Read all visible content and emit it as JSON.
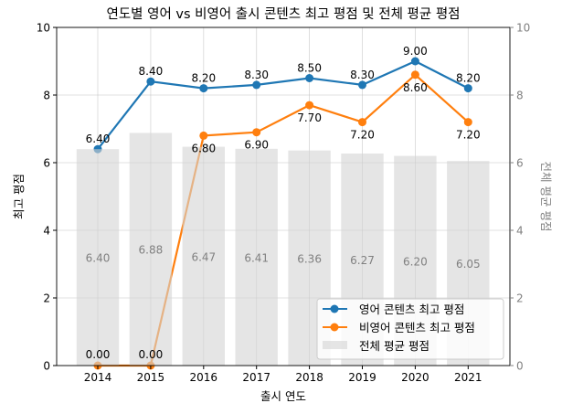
{
  "chart_data": {
    "type": "line+bar",
    "title": "연도별 영어 vs 비영어 출시 콘텐츠 최고 평점 및 전체 평균 평점",
    "xlabel": "출시 연도",
    "ylabel": "최고 평점",
    "ylabel_right": "전체 평균 평점",
    "categories": [
      "2014",
      "2015",
      "2016",
      "2017",
      "2018",
      "2019",
      "2020",
      "2021"
    ],
    "ylim": [
      0,
      10
    ],
    "ylim_right": [
      0,
      10
    ],
    "yticks": [
      "0",
      "2",
      "4",
      "6",
      "8",
      "10"
    ],
    "grid": true,
    "legend_position": "lower-right",
    "series": [
      {
        "name": "영어 콘텐츠 최고 평점",
        "type": "line",
        "color": "#1f77b4",
        "values": [
          6.4,
          8.4,
          8.2,
          8.3,
          8.5,
          8.3,
          9.0,
          8.2
        ],
        "labels": [
          "6.40",
          "8.40",
          "8.20",
          "8.30",
          "8.50",
          "8.30",
          "9.00",
          "8.20"
        ]
      },
      {
        "name": "비영어 콘텐츠 최고 평점",
        "type": "line",
        "color": "#ff7f0e",
        "values": [
          0.0,
          0.0,
          6.8,
          6.9,
          7.7,
          7.2,
          8.6,
          7.2
        ],
        "labels": [
          "0.00",
          "0.00",
          "6.80",
          "6.90",
          "7.70",
          "7.20",
          "8.60",
          "7.20"
        ]
      },
      {
        "name": "전체 평균 평점",
        "type": "bar",
        "axis": "right",
        "color": "#d3d3d3",
        "values": [
          6.4,
          6.88,
          6.47,
          6.41,
          6.36,
          6.27,
          6.2,
          6.05
        ],
        "labels": [
          "6.40",
          "6.88",
          "6.47",
          "6.41",
          "6.36",
          "6.27",
          "6.20",
          "6.05"
        ]
      }
    ]
  }
}
